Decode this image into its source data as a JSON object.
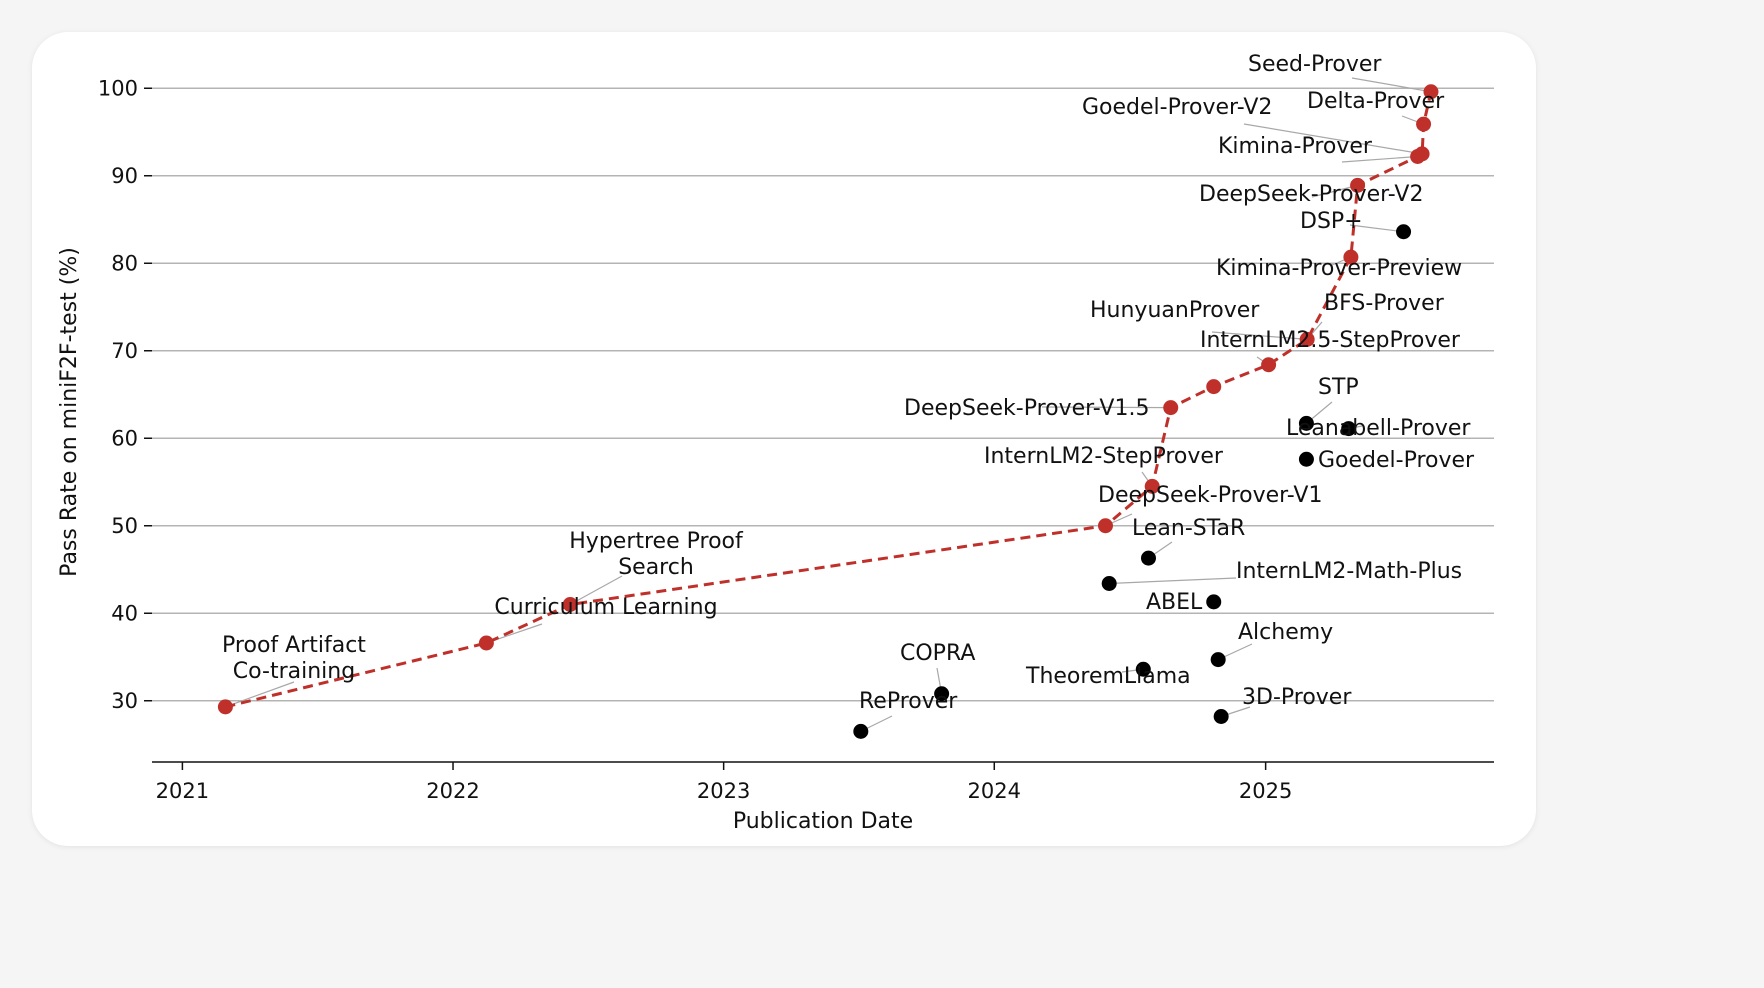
{
  "chart_data": {
    "type": "scatter",
    "title": "",
    "xlabel": "Publication Date",
    "ylabel": "Pass Rate on miniF2F-test (%)",
    "x_type": "date",
    "xlim": [
      "2020-11-21",
      "2025-11-05"
    ],
    "ylim": [
      23,
      103
    ],
    "x_ticks": [
      "2021",
      "2022",
      "2023",
      "2024",
      "2025"
    ],
    "y_ticks": [
      30,
      40,
      50,
      60,
      70,
      80,
      90,
      100
    ],
    "grid": "horizontal",
    "frontier_color": "#c0302a",
    "other_color": "#000000",
    "series": [
      {
        "role": "frontier",
        "points": [
          {
            "label": "Proof Artifact\nCo-training",
            "x": "2021-02-28",
            "y": 29.3
          },
          {
            "label": "Curriculum Learning",
            "x": "2022-02-15",
            "y": 36.6
          },
          {
            "label": "Hypertree Proof\nSearch",
            "x": "2022-06-08",
            "y": 41.0
          },
          {
            "label": "DeepSeek-Prover-V1",
            "x": "2024-05-30",
            "y": 50.0
          },
          {
            "label": "InternLM2-StepProver",
            "x": "2024-08-01",
            "y": 54.5
          },
          {
            "label": "DeepSeek-Prover-V1.5",
            "x": "2024-08-26",
            "y": 63.5
          },
          {
            "label": "",
            "x": "2024-10-23",
            "y": 65.9
          },
          {
            "label": "InternLM2.5-StepProver",
            "x": "2025-01-05",
            "y": 68.4
          },
          {
            "label": "HunyuanProver / BFS-Prover",
            "x": "2025-02-26",
            "y": 71.3
          },
          {
            "label": "Kimina-Prover-Preview",
            "x": "2025-04-26",
            "y": 80.7
          },
          {
            "label": "DeepSeek-Prover-V2",
            "x": "2025-05-05",
            "y": 88.9
          },
          {
            "label": "Kimina-Prover",
            "x": "2025-07-25",
            "y": 92.2
          },
          {
            "label": "Goedel-Prover-V2",
            "x": "2025-07-31",
            "y": 92.5
          },
          {
            "label": "Delta-Prover",
            "x": "2025-08-02",
            "y": 95.9
          },
          {
            "label": "Seed-Prover",
            "x": "2025-08-12",
            "y": 99.6
          }
        ]
      },
      {
        "role": "other",
        "points": [
          {
            "label": "ReProver",
            "x": "2023-07-05",
            "y": 26.5
          },
          {
            "label": "COPRA",
            "x": "2023-10-22",
            "y": 30.8
          },
          {
            "label": "TheoremLlama",
            "x": "2024-07-20",
            "y": 33.6
          },
          {
            "label": "Lean-STaR",
            "x": "2024-07-27",
            "y": 46.3
          },
          {
            "label": "InternLM2-Math-Plus",
            "x": "2024-06-04",
            "y": 43.4
          },
          {
            "label": "ABEL",
            "x": "2024-10-23",
            "y": 41.3
          },
          {
            "label": "Alchemy",
            "x": "2024-10-29",
            "y": 34.7
          },
          {
            "label": "3D-Prover",
            "x": "2024-11-02",
            "y": 28.2
          },
          {
            "label": "STP",
            "x": "2025-02-25",
            "y": 61.7
          },
          {
            "label": "Goedel-Prover",
            "x": "2025-02-25",
            "y": 57.6
          },
          {
            "label": "Leanabell-Prover",
            "x": "2025-04-23",
            "y": 61.1
          },
          {
            "label": "DSP+",
            "x": "2025-07-06",
            "y": 83.6
          }
        ]
      }
    ]
  }
}
